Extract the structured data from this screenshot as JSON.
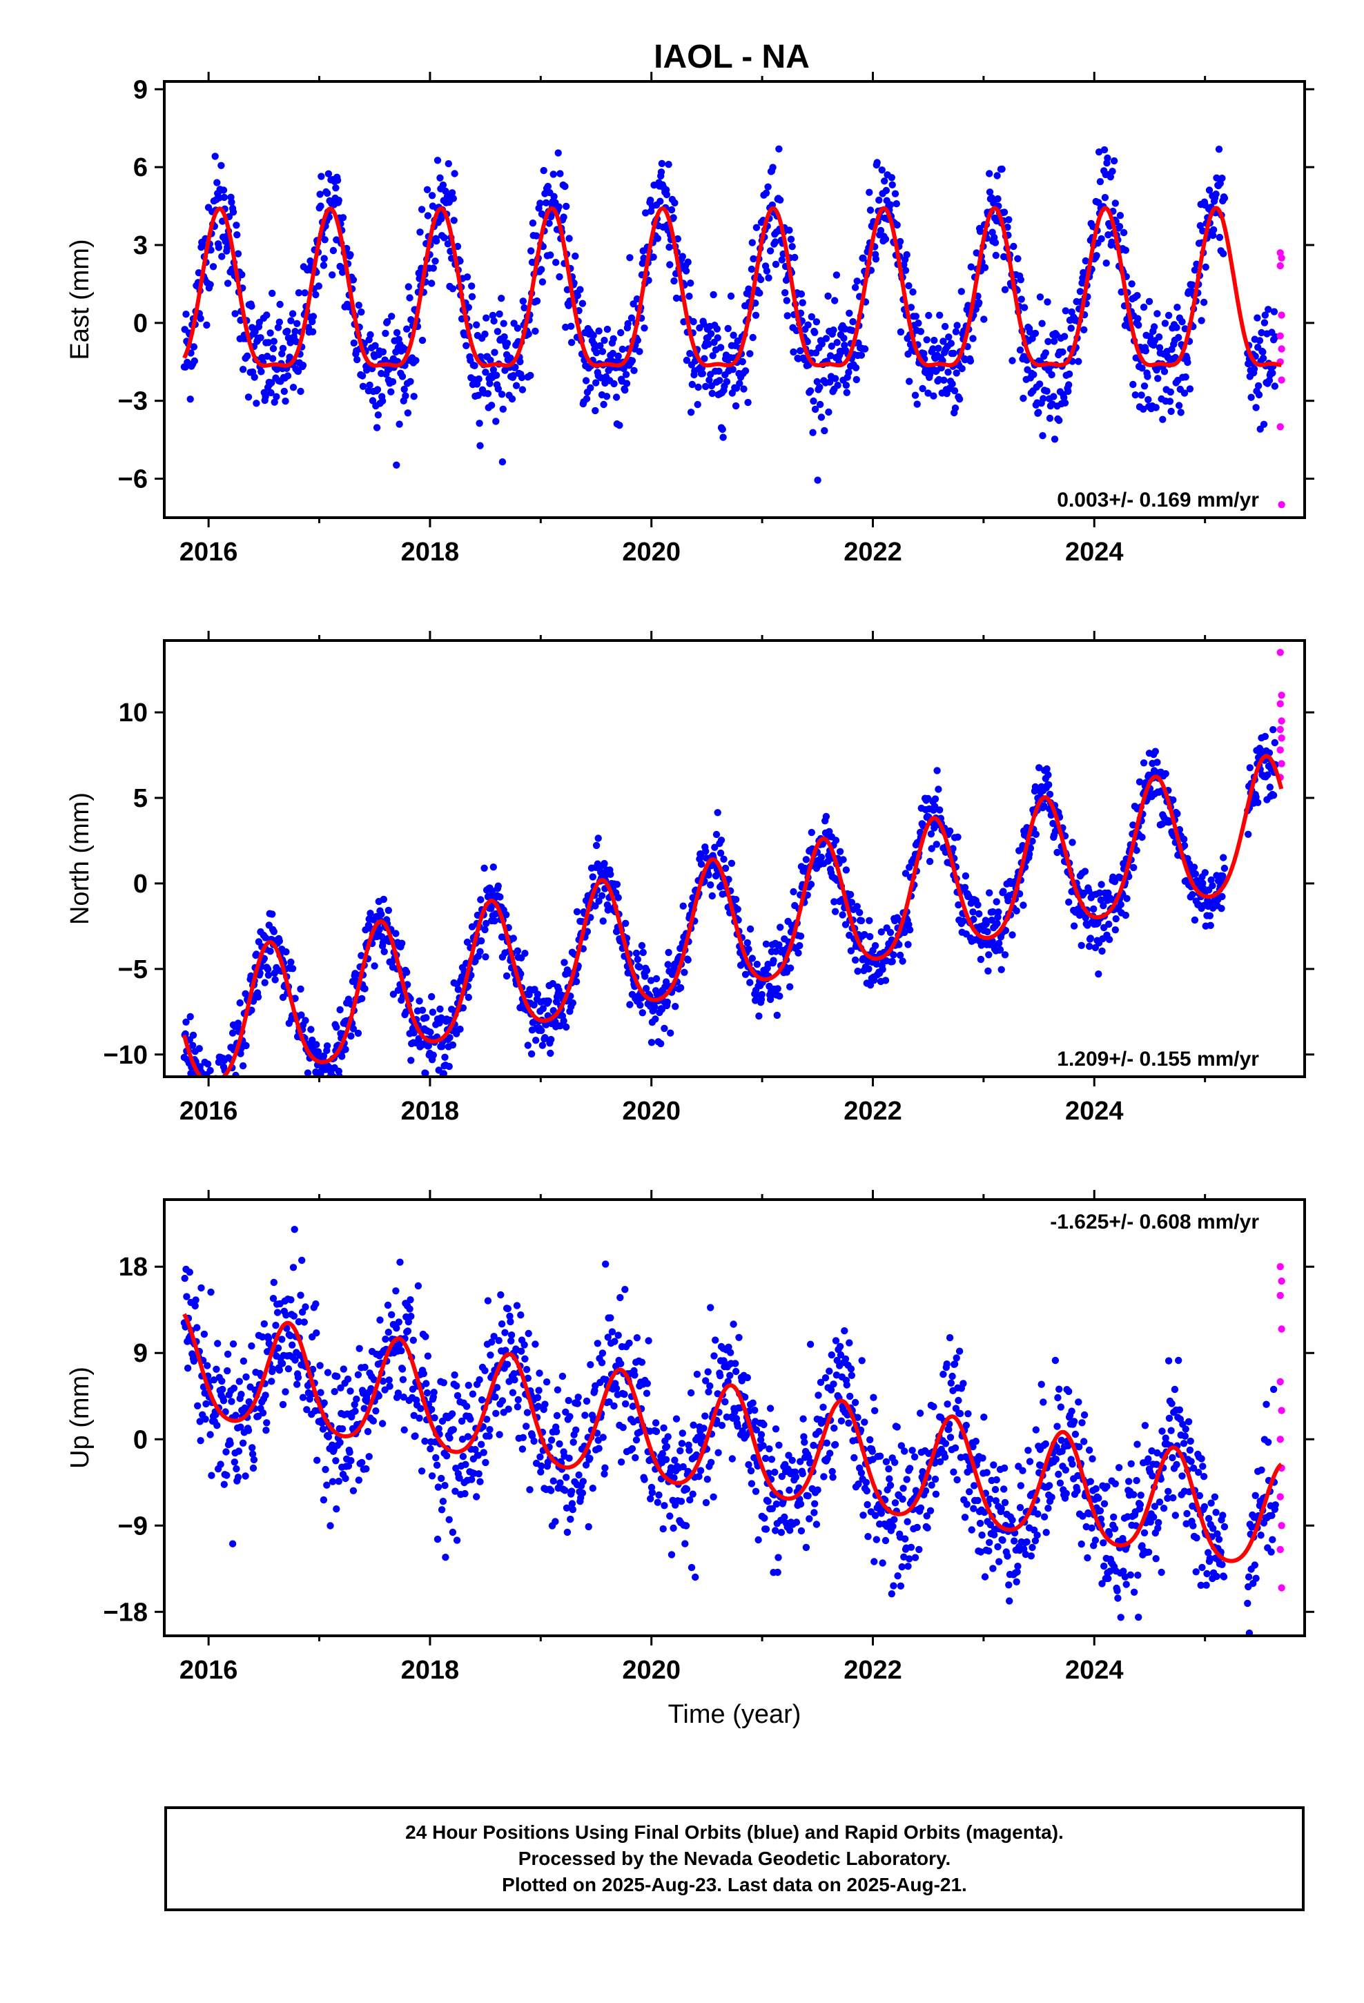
{
  "title": "IAOL - NA",
  "colors": {
    "final_orbits": "#0000ff",
    "rapid_orbits": "#ff00ff",
    "model": "#ff0000",
    "frame": "#000000"
  },
  "caption": {
    "line1": "24 Hour Positions Using Final Orbits (blue) and Rapid Orbits (magenta).",
    "line2": "Processed by the Nevada Geodetic Laboratory.",
    "line3": "Plotted on 2025-Aug-23. Last data on 2025-Aug-21."
  },
  "chart_data": [
    {
      "type": "scatter",
      "ylabel": "East (mm)",
      "xlabel": "",
      "xlim": [
        2015.6,
        2025.9
      ],
      "ylim": [
        -7.5,
        9.3
      ],
      "yticks": [
        -6,
        -3,
        0,
        3,
        6,
        9
      ],
      "xticks": [
        2016,
        2018,
        2020,
        2022,
        2024
      ],
      "rate_text": "0.003+/- 0.169 mm/yr",
      "rate_position": "bottom-right",
      "data_start": 2015.78,
      "data_end": 2025.64,
      "gap": [
        2025.18,
        2025.38
      ],
      "model": {
        "offset": 0.5,
        "trend": 0.003,
        "annual_amplitude": 3.0,
        "semiannual_amplitude": 0.9,
        "peak_year_fraction": 0.1
      },
      "scatter_std": 1.1,
      "rapid_values": [
        2.7,
        2.5,
        2.2,
        0.3,
        -0.5,
        -1.0,
        -1.5,
        -2.2,
        -4.0,
        -7.0
      ]
    },
    {
      "type": "scatter",
      "ylabel": "North (mm)",
      "xlabel": "",
      "xlim": [
        2015.6,
        2025.9
      ],
      "ylim": [
        -11.3,
        14.2
      ],
      "yticks": [
        -10,
        -5,
        0,
        5,
        10
      ],
      "xticks": [
        2016,
        2018,
        2020,
        2022,
        2024
      ],
      "rate_text": "1.209+/- 0.155 mm/yr",
      "rate_position": "bottom-right",
      "data_start": 2015.78,
      "data_end": 2025.64,
      "gap": [
        2025.18,
        2025.38
      ],
      "model": {
        "offset": -8.5,
        "trend": 1.209,
        "annual_amplitude": 3.8,
        "semiannual_amplitude": 0.6,
        "peak_year_fraction": 0.55
      },
      "scatter_std": 1.0,
      "rapid_values": [
        13.5,
        11.0,
        10.5,
        9.5,
        9.0,
        8.5,
        7.8,
        7.0,
        6.2
      ]
    },
    {
      "type": "scatter",
      "ylabel": "Up (mm)",
      "xlabel": "Time (year)",
      "xlim": [
        2015.6,
        2025.9
      ],
      "ylim": [
        -20.5,
        25.0
      ],
      "yticks": [
        -18,
        -9,
        0,
        9,
        18
      ],
      "xticks": [
        2016,
        2018,
        2020,
        2022,
        2024
      ],
      "rate_text": "-1.625+/- 0.608 mm/yr",
      "rate_position": "top-right",
      "data_start": 2015.78,
      "data_end": 2025.64,
      "gap": [
        2025.18,
        2025.38
      ],
      "model": {
        "offset": 7.0,
        "trend": -1.625,
        "annual_amplitude": 5.5,
        "semiannual_amplitude": 0.8,
        "peak_year_fraction": 0.72
      },
      "scatter_std": 3.8,
      "rapid_values": [
        18.0,
        16.5,
        15.0,
        11.5,
        6.0,
        3.0,
        0.0,
        -3.0,
        -6.0,
        -9.0,
        -11.5,
        -15.5
      ]
    }
  ]
}
